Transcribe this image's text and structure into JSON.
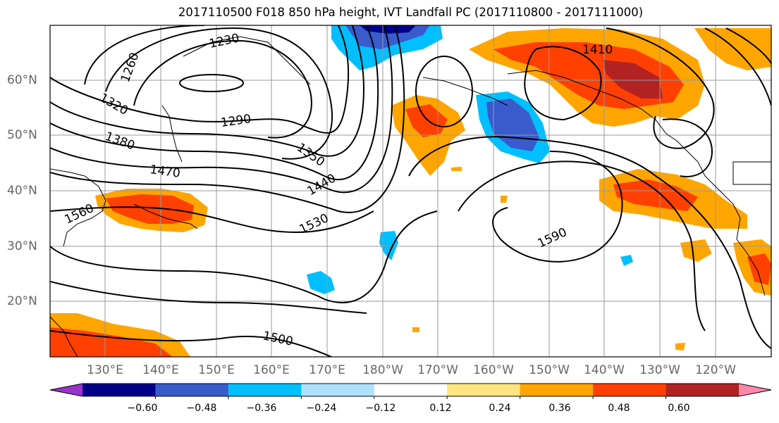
{
  "title": "2017110500 F018 850 hPa height, IVT Landfall PC (2017110800 - 2017111000)",
  "x_ticks": [
    "130°E",
    "140°E",
    "150°E",
    "160°E",
    "170°E",
    "180°W",
    "170°W",
    "160°W",
    "150°W",
    "140°W",
    "130°W",
    "120°W"
  ],
  "y_ticks": [
    "60°N",
    "50°N",
    "40°N",
    "30°N",
    "20°N"
  ],
  "contour_labels": [
    "1230",
    "1260",
    "1290",
    "1320",
    "1350",
    "1380",
    "1410",
    "1440",
    "1470",
    "1500",
    "1530",
    "1560",
    "1590"
  ],
  "colorbar": {
    "colors": [
      "#9933cc",
      "#00008b",
      "#3a5bcc",
      "#00bfff",
      "#aee3ff",
      "#ffffff",
      "#ffe680",
      "#ffa500",
      "#ff4000",
      "#b22222",
      "#ff88aa"
    ],
    "tick_labels": [
      "−0.60",
      "−0.48",
      "−0.36",
      "−0.24",
      "−0.12",
      "0.12",
      "0.24",
      "0.36",
      "0.48",
      "0.60"
    ]
  }
}
